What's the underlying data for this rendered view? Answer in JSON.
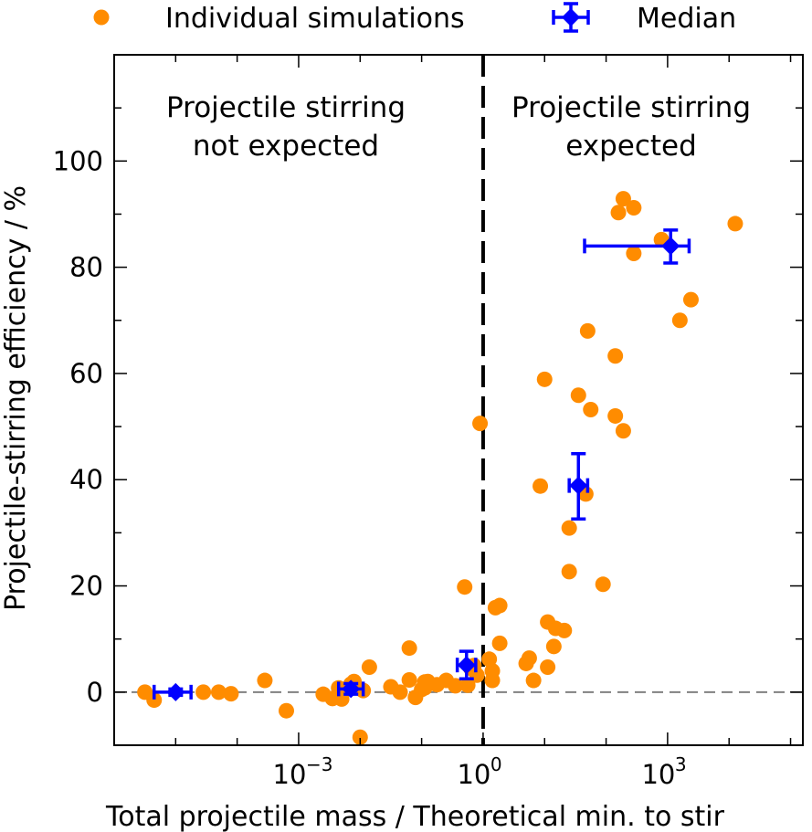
{
  "chart_data": {
    "type": "scatter",
    "title": "",
    "xlabel": "Total projectile mass / Theoretical min. to stir",
    "ylabel": "Projectile-stirring efficiency / %",
    "xscale": "log",
    "xlim_log10": [
      -6,
      5.2
    ],
    "ylim": [
      -10,
      120
    ],
    "x_tick_labels": [
      {
        "label": "10",
        "exp": "−3",
        "value_log10": -3
      },
      {
        "label": "10",
        "exp": "0",
        "value_log10": 0
      },
      {
        "label": "10",
        "exp": "3",
        "value_log10": 3
      }
    ],
    "y_ticks": [
      0,
      20,
      40,
      60,
      80,
      100
    ],
    "reference_lines": {
      "threshold_x_log10": 0,
      "zero_y": 0
    },
    "region_labels": [
      {
        "line1": "Projectile stirring",
        "line2": "not expected",
        "side": "left"
      },
      {
        "line1": "Projectile stirring",
        "line2": "expected",
        "side": "right"
      }
    ],
    "legend": {
      "location": "top",
      "entries": [
        {
          "label": "Individual simulations",
          "marker": "circle"
        },
        {
          "label": "Median",
          "marker": "diamond-with-errorbars"
        }
      ]
    },
    "colors": {
      "individual": "#ff8c00",
      "median": "#0000ff",
      "threshold": "#000000",
      "zero_line": "#808080"
    },
    "series": [
      {
        "name": "Individual simulations",
        "points_log10x_y": [
          [
            -5.5,
            0
          ],
          [
            -5.35,
            -1.5
          ],
          [
            -4.55,
            0
          ],
          [
            -4.3,
            0
          ],
          [
            -4.1,
            -0.3
          ],
          [
            -3.55,
            2.2
          ],
          [
            -3.2,
            -3.5
          ],
          [
            -2.6,
            -0.4
          ],
          [
            -2.45,
            -1.2
          ],
          [
            -2.3,
            -1.3
          ],
          [
            -2.35,
            0.8
          ],
          [
            -2.1,
            2.0
          ],
          [
            -2.0,
            -8.5
          ],
          [
            -2.15,
            1.5
          ],
          [
            -1.85,
            4.7
          ],
          [
            -1.95,
            0.3
          ],
          [
            -1.5,
            1.0
          ],
          [
            -1.35,
            0.0
          ],
          [
            -1.2,
            2.3
          ],
          [
            -1.1,
            -1.0
          ],
          [
            -1.0,
            0.5
          ],
          [
            -0.9,
            2.0
          ],
          [
            -0.75,
            1.4
          ],
          [
            -1.2,
            8.3
          ],
          [
            -0.6,
            2.2
          ],
          [
            -0.95,
            0.8
          ],
          [
            -0.45,
            1.2
          ],
          [
            -0.95,
            1.9
          ],
          [
            -0.3,
            19.8
          ],
          [
            -0.25,
            1.3
          ],
          [
            -0.15,
            5.0
          ],
          [
            -0.05,
            50.6
          ],
          [
            0.1,
            6.2
          ],
          [
            0.15,
            4.0
          ],
          [
            0.15,
            2.2
          ],
          [
            0.2,
            15.9
          ],
          [
            0.27,
            16.3
          ],
          [
            0.27,
            9.2
          ],
          [
            -0.2,
            4.5
          ],
          [
            -0.1,
            3.2
          ],
          [
            0.7,
            5.4
          ],
          [
            0.75,
            6.4
          ],
          [
            0.82,
            2.2
          ],
          [
            0.93,
            38.8
          ],
          [
            1.0,
            58.9
          ],
          [
            1.05,
            13.2
          ],
          [
            1.05,
            4.7
          ],
          [
            1.15,
            8.6
          ],
          [
            1.18,
            12.0
          ],
          [
            1.32,
            11.6
          ],
          [
            1.4,
            30.9
          ],
          [
            1.4,
            22.7
          ],
          [
            1.55,
            55.9
          ],
          [
            1.67,
            37.3
          ],
          [
            1.7,
            68.0
          ],
          [
            1.75,
            53.2
          ],
          [
            1.95,
            20.3
          ],
          [
            2.15,
            63.3
          ],
          [
            2.15,
            52.0
          ],
          [
            2.2,
            90.3
          ],
          [
            2.28,
            92.9
          ],
          [
            2.28,
            49.2
          ],
          [
            2.45,
            91.2
          ],
          [
            2.45,
            82.6
          ],
          [
            2.9,
            85.2
          ],
          [
            3.2,
            70.0
          ],
          [
            3.38,
            73.9
          ],
          [
            4.1,
            88.2
          ]
        ]
      },
      {
        "name": "Median",
        "points": [
          {
            "x_log10": -5.0,
            "y": 0.0,
            "x_err_lo": 0.35,
            "x_err_hi": 0.25,
            "y_err_lo": 0.6,
            "y_err_hi": 0.6
          },
          {
            "x_log10": -2.15,
            "y": 0.6,
            "x_err_lo": 0.2,
            "x_err_hi": 0.2,
            "y_err_lo": 1.0,
            "y_err_hi": 1.0
          },
          {
            "x_log10": -0.27,
            "y": 5.1,
            "x_err_lo": 0.15,
            "x_err_hi": 0.15,
            "y_err_lo": 2.6,
            "y_err_hi": 2.6
          },
          {
            "x_log10": 1.55,
            "y": 38.9,
            "x_err_lo": 0.15,
            "x_err_hi": 0.15,
            "y_err_lo": 6.3,
            "y_err_hi": 6.0
          },
          {
            "x_log10": 3.05,
            "y": 84.0,
            "x_err_lo": 1.4,
            "x_err_hi": 0.3,
            "y_err_lo": 3.2,
            "y_err_hi": 3.0
          }
        ]
      }
    ]
  }
}
